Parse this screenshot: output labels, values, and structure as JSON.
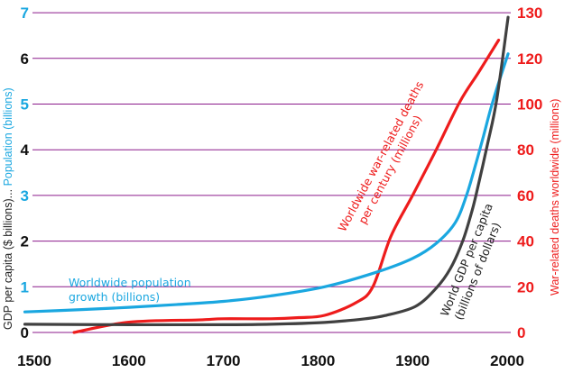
{
  "chart_data": {
    "type": "line",
    "xlim": [
      1490,
      2005
    ],
    "x_ticks": [
      "1500",
      "1600",
      "1700",
      "1800",
      "1900",
      "2000"
    ],
    "left_axis": {
      "label_parts": [
        {
          "text": "GDP per capita ($ billions)...",
          "color": "#222222"
        },
        {
          "text": " Population (billions)",
          "color": "#1aa7e0"
        }
      ],
      "ticks": [
        {
          "label": "0",
          "value": 0,
          "color": "#111111"
        },
        {
          "label": "1",
          "value": 1,
          "color": "#1aa7e0"
        },
        {
          "label": "2",
          "value": 2,
          "color": "#111111"
        },
        {
          "label": "3",
          "value": 3,
          "color": "#1aa7e0"
        },
        {
          "label": "4",
          "value": 4,
          "color": "#111111"
        },
        {
          "label": "5",
          "value": 5,
          "color": "#1aa7e0"
        },
        {
          "label": "6",
          "value": 6,
          "color": "#111111"
        },
        {
          "label": "7",
          "value": 7,
          "color": "#1aa7e0"
        }
      ],
      "ylim": [
        0,
        7
      ]
    },
    "right_axis": {
      "label": "War-related deaths worldwide (millions)",
      "color": "#ee1c1c",
      "ticks": [
        "0",
        "20",
        "40",
        "60",
        "80",
        "100",
        "120",
        "130"
      ]
    },
    "grid": true,
    "grid_color": "#8b1a8b",
    "series": [
      {
        "name": "Worldwide population growth (billions)",
        "axis": "left",
        "color": "#1aa7e0",
        "points": [
          [
            1490,
            0.45
          ],
          [
            1550,
            0.5
          ],
          [
            1600,
            0.55
          ],
          [
            1650,
            0.61
          ],
          [
            1700,
            0.68
          ],
          [
            1750,
            0.8
          ],
          [
            1807,
            1.0
          ],
          [
            1862,
            1.32
          ],
          [
            1900,
            1.62
          ],
          [
            1925,
            1.95
          ],
          [
            1945,
            2.4
          ],
          [
            1957,
            3.0
          ],
          [
            1967,
            3.7
          ],
          [
            1975,
            4.3
          ],
          [
            1982,
            4.85
          ],
          [
            1990,
            5.4
          ],
          [
            2001,
            6.1
          ]
        ]
      },
      {
        "name": "World GDP per capita (billions of dollars)",
        "axis": "left",
        "color": "#404040",
        "points": [
          [
            1490,
            0.18
          ],
          [
            1600,
            0.17
          ],
          [
            1700,
            0.17
          ],
          [
            1750,
            0.18
          ],
          [
            1807,
            0.22
          ],
          [
            1850,
            0.3
          ],
          [
            1871,
            0.37
          ],
          [
            1903,
            0.57
          ],
          [
            1925,
            0.97
          ],
          [
            1940,
            1.4
          ],
          [
            1953,
            2.0
          ],
          [
            1962,
            2.6
          ],
          [
            1967,
            3.0
          ],
          [
            1979,
            4.1
          ],
          [
            1989,
            5.1
          ],
          [
            2001,
            6.9
          ]
        ]
      },
      {
        "name": "Worldwide war-related deaths per century (millions)",
        "axis": "right",
        "color": "#ee1c1c",
        "points": [
          [
            1542,
            0
          ],
          [
            1600,
            4.5
          ],
          [
            1674,
            5.5
          ],
          [
            1700,
            6
          ],
          [
            1750,
            6
          ],
          [
            1780,
            6.5
          ],
          [
            1807,
            7.5
          ],
          [
            1840,
            13
          ],
          [
            1858,
            20
          ],
          [
            1877,
            42
          ],
          [
            1900,
            60
          ],
          [
            1925,
            80
          ],
          [
            1950,
            101
          ],
          [
            1970,
            114
          ],
          [
            1991,
            124
          ]
        ]
      }
    ],
    "annotations": {
      "population": [
        "Worldwide population",
        "growth (billions)"
      ],
      "war": [
        "Worldwide war-related deaths",
        "per century (millions)"
      ],
      "gdp": [
        "World GDP per capita",
        "(billions of dollars)"
      ]
    }
  }
}
